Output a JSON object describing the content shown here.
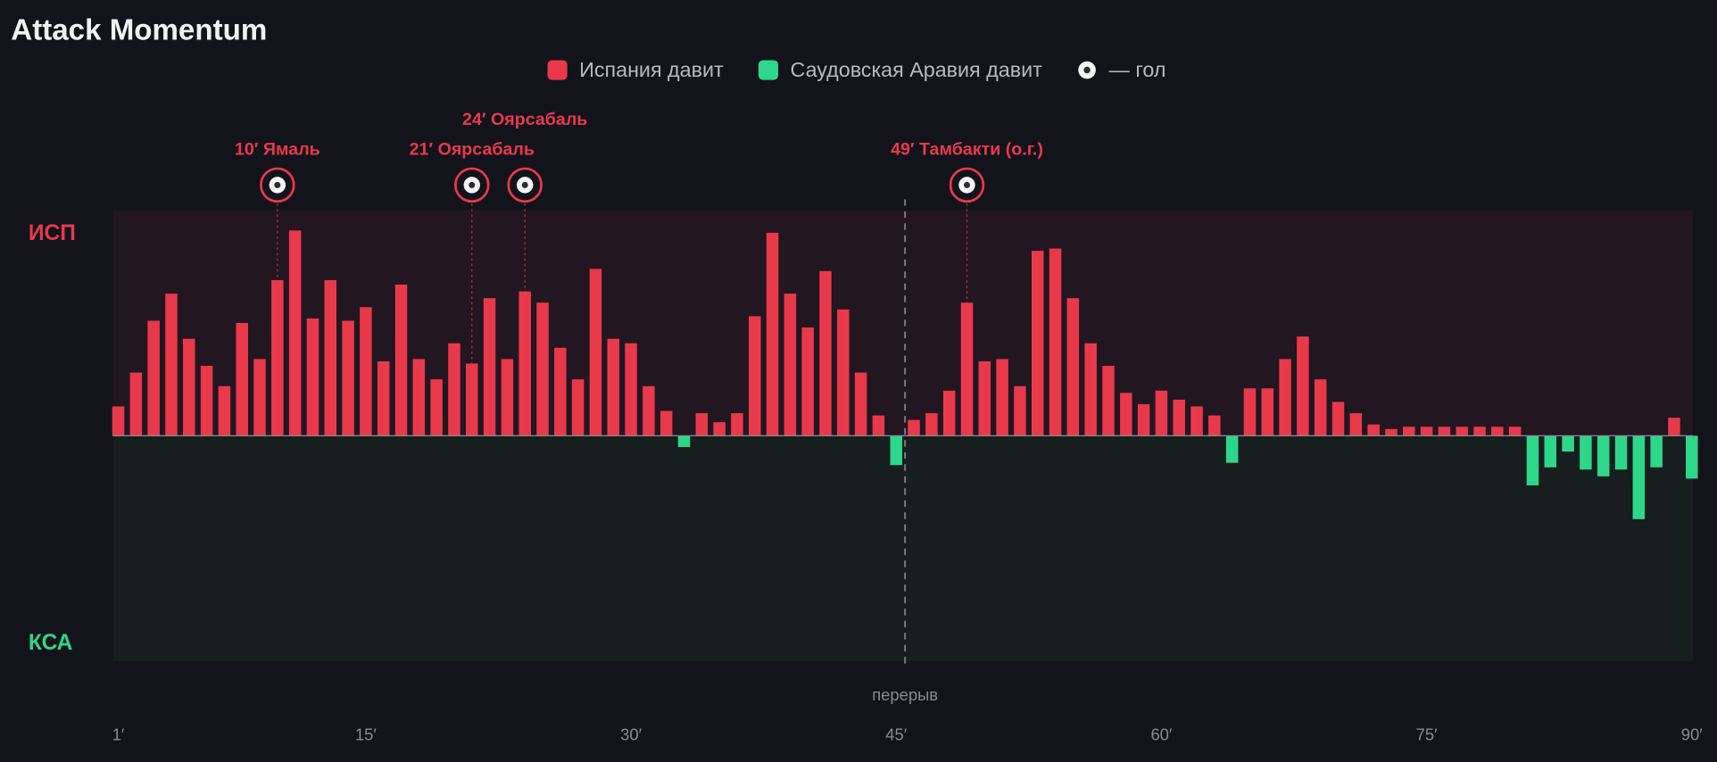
{
  "chart_data": {
    "type": "momentum",
    "title": "Attack Momentum",
    "legend": [
      {
        "label": "Испания давит",
        "color": "#e8394a"
      },
      {
        "label": "Саудовская Аравия давит",
        "color": "#2ed68a"
      },
      {
        "label": "— гол"
      }
    ],
    "team_labels": [
      "ИСП",
      "КСА"
    ],
    "x": [
      1,
      2,
      3,
      4,
      5,
      6,
      7,
      8,
      9,
      10,
      11,
      12,
      13,
      14,
      15,
      16,
      17,
      18,
      19,
      20,
      21,
      22,
      23,
      24,
      25,
      26,
      27,
      28,
      29,
      30,
      31,
      32,
      33,
      34,
      35,
      36,
      37,
      38,
      39,
      40,
      41,
      42,
      43,
      44,
      45,
      46,
      47,
      48,
      49,
      50,
      51,
      52,
      53,
      54,
      55,
      56,
      57,
      58,
      59,
      60,
      61,
      62,
      63,
      64,
      65,
      66,
      67,
      68,
      69,
      70,
      71,
      72,
      73,
      74,
      75,
      76,
      77,
      78,
      79,
      80,
      81,
      82,
      83,
      84,
      85,
      86,
      87,
      88,
      89,
      90
    ],
    "values": [
      13,
      28,
      51,
      63,
      43,
      31,
      22,
      50,
      34,
      69,
      91,
      52,
      69,
      51,
      57,
      33,
      67,
      34,
      25,
      41,
      32,
      61,
      34,
      64,
      59,
      39,
      25,
      74,
      43,
      41,
      22,
      11,
      -5,
      10,
      6,
      10,
      53,
      90,
      63,
      48,
      73,
      56,
      28,
      9,
      -13,
      7,
      10,
      20,
      59,
      33,
      34,
      22,
      82,
      83,
      61,
      41,
      31,
      19,
      14,
      20,
      16,
      13,
      9,
      -12,
      21,
      21,
      34,
      44,
      25,
      15,
      10,
      5,
      3,
      4,
      4,
      4,
      4,
      4,
      4,
      4,
      -22,
      -14,
      -7,
      -15,
      -18,
      -15,
      -37,
      -14,
      8,
      -19
    ],
    "xlim": [
      1,
      90
    ],
    "ylim": [
      -100,
      100
    ],
    "xticks": [
      {
        "value": 1,
        "label": "1′"
      },
      {
        "value": 15,
        "label": "15′"
      },
      {
        "value": 30,
        "label": "30′"
      },
      {
        "value": 45,
        "label": "45′"
      },
      {
        "value": 60,
        "label": "60′"
      },
      {
        "value": 75,
        "label": "75′"
      },
      {
        "value": 90,
        "label": "90′"
      }
    ],
    "halftime_label": "перерыв",
    "goals": [
      {
        "minute": 10,
        "label": "10′ Ямаль"
      },
      {
        "minute": 21,
        "label": "21′ Ояpсабаль"
      },
      {
        "minute": 24,
        "label": "24′ Ояpсабаль"
      },
      {
        "minute": 49,
        "label": "49′ Тамбакти (о.г.)"
      }
    ]
  }
}
